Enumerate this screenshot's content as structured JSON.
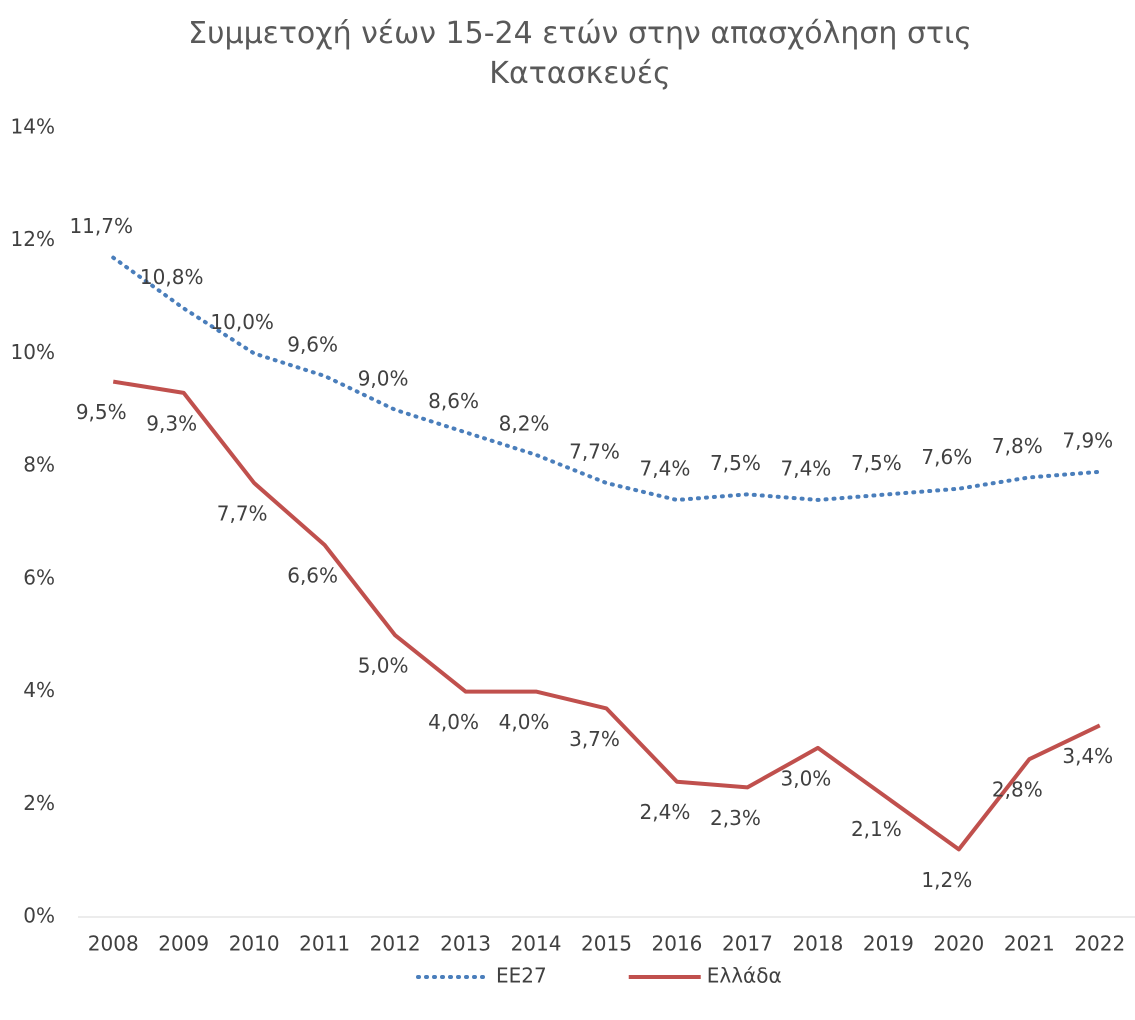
{
  "chart_data": {
    "type": "line",
    "title": "Συμμετοχή νέων 15-24 ετών στην απασχόληση στις Κατασκευές",
    "categories": [
      "2008",
      "2009",
      "2010",
      "2011",
      "2012",
      "2013",
      "2014",
      "2015",
      "2016",
      "2017",
      "2018",
      "2019",
      "2020",
      "2021",
      "2022"
    ],
    "series": [
      {
        "name": "ΕΕ27",
        "color": "#4a7ebb",
        "dash": "dotted",
        "values": [
          11.7,
          10.8,
          10.0,
          9.6,
          9.0,
          8.6,
          8.2,
          7.7,
          7.4,
          7.5,
          7.4,
          7.5,
          7.6,
          7.8,
          7.9
        ],
        "value_labels": [
          "11,7%",
          "10,8%",
          "10,0%",
          "9,6%",
          "9,0%",
          "8,6%",
          "8,2%",
          "7,7%",
          "7,4%",
          "7,5%",
          "7,4%",
          "7,5%",
          "7,6%",
          "7,8%",
          "7,9%"
        ]
      },
      {
        "name": "Ελλάδα",
        "color": "#c0504d",
        "dash": "solid",
        "values": [
          9.5,
          9.3,
          7.7,
          6.6,
          5.0,
          4.0,
          4.0,
          3.7,
          2.4,
          2.3,
          3.0,
          2.1,
          1.2,
          2.8,
          3.4
        ],
        "value_labels": [
          "9,5%",
          "9,3%",
          "7,7%",
          "6,6%",
          "5,0%",
          "4,0%",
          "4,0%",
          "3,7%",
          "2,4%",
          "2,3%",
          "3,0%",
          "2,1%",
          "1,2%",
          "2,8%",
          "3,4%"
        ]
      }
    ],
    "ylim": [
      0,
      14
    ],
    "yticks": [
      {
        "value": 0,
        "label": "0%"
      },
      {
        "value": 2,
        "label": "2%"
      },
      {
        "value": 4,
        "label": "4%"
      },
      {
        "value": 6,
        "label": "6%"
      },
      {
        "value": 8,
        "label": "8%"
      },
      {
        "value": 10,
        "label": "10%"
      },
      {
        "value": 12,
        "label": "12%"
      },
      {
        "value": 14,
        "label": "14%"
      }
    ],
    "grid": false,
    "legend": "bottom"
  }
}
